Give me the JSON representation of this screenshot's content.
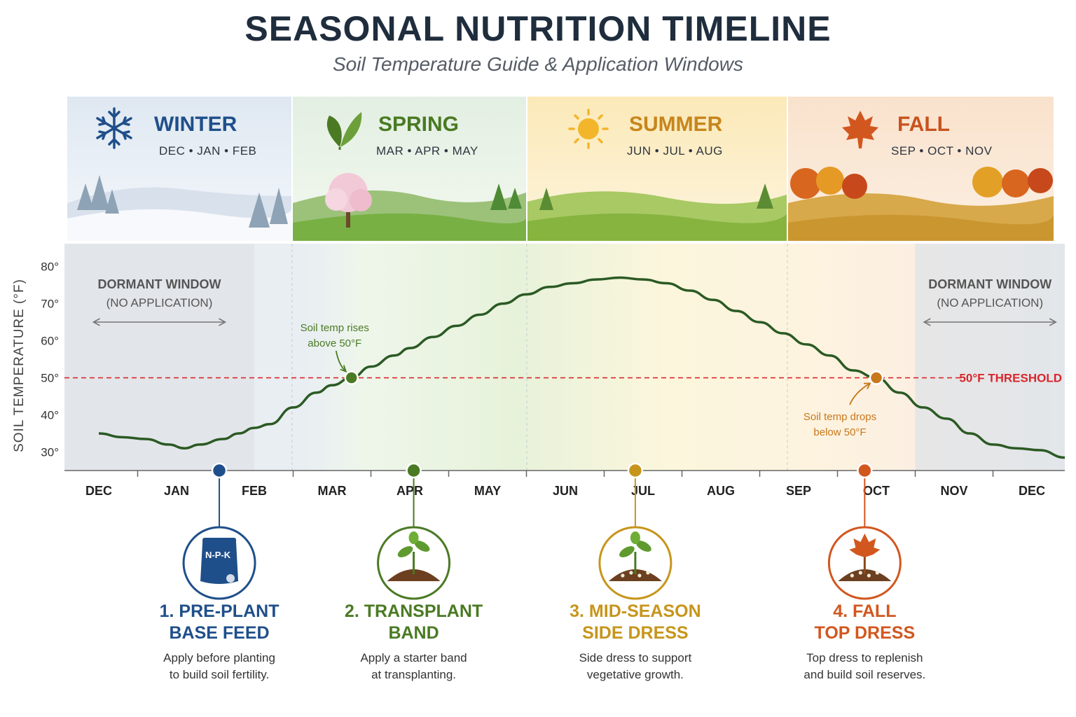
{
  "title": "SEASONAL NUTRITION TIMELINE",
  "subtitle": "Soil Temperature Guide & Application Windows",
  "seasons": [
    {
      "name": "WINTER",
      "months": "DEC • JAN • FEB",
      "color": "#1f4f8a",
      "icon": "snowflake-icon"
    },
    {
      "name": "SPRING",
      "months": "MAR • APR • MAY",
      "color": "#4a7a23",
      "icon": "leaf-icon"
    },
    {
      "name": "SUMMER",
      "months": "JUN • JUL • AUG",
      "color": "#c7851b",
      "icon": "sun-icon"
    },
    {
      "name": "FALL",
      "months": "SEP • OCT • NOV",
      "color": "#c8521e",
      "icon": "maple-leaf-icon"
    }
  ],
  "chart_data": {
    "type": "line",
    "ylabel": "SOIL TEMPERATURE (°F)",
    "ylim": [
      25,
      82
    ],
    "yticks": [
      "80°",
      "70°",
      "60°",
      "50°",
      "40°",
      "30°"
    ],
    "yticks_values": [
      80,
      70,
      60,
      50,
      40,
      30
    ],
    "categories": [
      "DEC",
      "JAN",
      "FEB",
      "MAR",
      "APR",
      "MAY",
      "JUN",
      "JUL",
      "AUG",
      "SEP",
      "OCT",
      "NOV",
      "DEC"
    ],
    "series": [
      {
        "values": [
          [
            0,
            35
          ],
          [
            0.3,
            34
          ],
          [
            0.6,
            33.5
          ],
          [
            0.9,
            32
          ],
          [
            1.1,
            31
          ],
          [
            1.3,
            32
          ],
          [
            1.6,
            33.5
          ],
          [
            1.8,
            35
          ],
          [
            2.0,
            36.5
          ],
          [
            2.2,
            37.5
          ],
          [
            2.5,
            42
          ],
          [
            2.8,
            46
          ],
          [
            3.0,
            48
          ],
          [
            3.25,
            50
          ],
          [
            3.5,
            53
          ],
          [
            3.8,
            56
          ],
          [
            4.0,
            58
          ],
          [
            4.3,
            61
          ],
          [
            4.6,
            64
          ],
          [
            4.9,
            67
          ],
          [
            5.2,
            70
          ],
          [
            5.5,
            72.5
          ],
          [
            5.8,
            74.5
          ],
          [
            6.1,
            75.5
          ],
          [
            6.4,
            76.5
          ],
          [
            6.7,
            77
          ],
          [
            7.0,
            76.5
          ],
          [
            7.3,
            75.5
          ],
          [
            7.6,
            73.5
          ],
          [
            7.9,
            71
          ],
          [
            8.2,
            68
          ],
          [
            8.5,
            65
          ],
          [
            8.8,
            62
          ],
          [
            9.1,
            59
          ],
          [
            9.4,
            56
          ],
          [
            9.7,
            52
          ],
          [
            10.0,
            50
          ],
          [
            10.3,
            46
          ],
          [
            10.6,
            42
          ],
          [
            10.9,
            39
          ],
          [
            11.2,
            35
          ],
          [
            11.5,
            32
          ],
          [
            11.8,
            31
          ],
          [
            12.1,
            30.5
          ],
          [
            12.5,
            28.5
          ]
        ],
        "color": "#2b5a24"
      }
    ],
    "threshold": {
      "value": 50,
      "label": "50°F THRESHOLD",
      "color": "#d9262c"
    },
    "dormant_windows": [
      {
        "title": "DORMANT WINDOW",
        "sub": "(NO APPLICATION)",
        "range": [
          -0.45,
          2.0
        ]
      },
      {
        "title": "DORMANT WINDOW",
        "sub": "(NO APPLICATION)",
        "range": [
          10.5,
          12.55
        ]
      }
    ],
    "annotations": [
      {
        "lines": [
          "Soil temp rises",
          "above 50°F"
        ],
        "x": 3.25,
        "y": 50,
        "color": "#4a7a23"
      },
      {
        "lines": [
          "Soil temp drops",
          "below 50°F"
        ],
        "x": 10.0,
        "y": 50,
        "color": "#c8771b"
      }
    ],
    "grid": false
  },
  "applications": [
    {
      "title_lines": [
        "1. PRE-PLANT",
        "BASE FEED"
      ],
      "desc_lines": [
        "Apply before planting",
        "to build soil fertility."
      ],
      "x": 1.55,
      "color": "#1f4f8a",
      "icon": "fertilizer-bag-icon",
      "bag_label": "N-P-K"
    },
    {
      "title_lines": [
        "2. TRANSPLANT",
        "BAND"
      ],
      "desc_lines": [
        "Apply a starter band",
        "at transplanting."
      ],
      "x": 4.05,
      "color": "#4a7a23",
      "icon": "seedling-icon"
    },
    {
      "title_lines": [
        "3. MID-SEASON",
        "SIDE DRESS"
      ],
      "desc_lines": [
        "Side dress to support",
        "vegetative growth."
      ],
      "x": 6.9,
      "color": "#c7951b",
      "icon": "plant-soil-icon"
    },
    {
      "title_lines": [
        "4. FALL",
        "TOP DRESS"
      ],
      "desc_lines": [
        "Top dress to replenish",
        "and build soil reserves."
      ],
      "x": 9.85,
      "color": "#d2571f",
      "icon": "leaf-soil-icon"
    }
  ]
}
